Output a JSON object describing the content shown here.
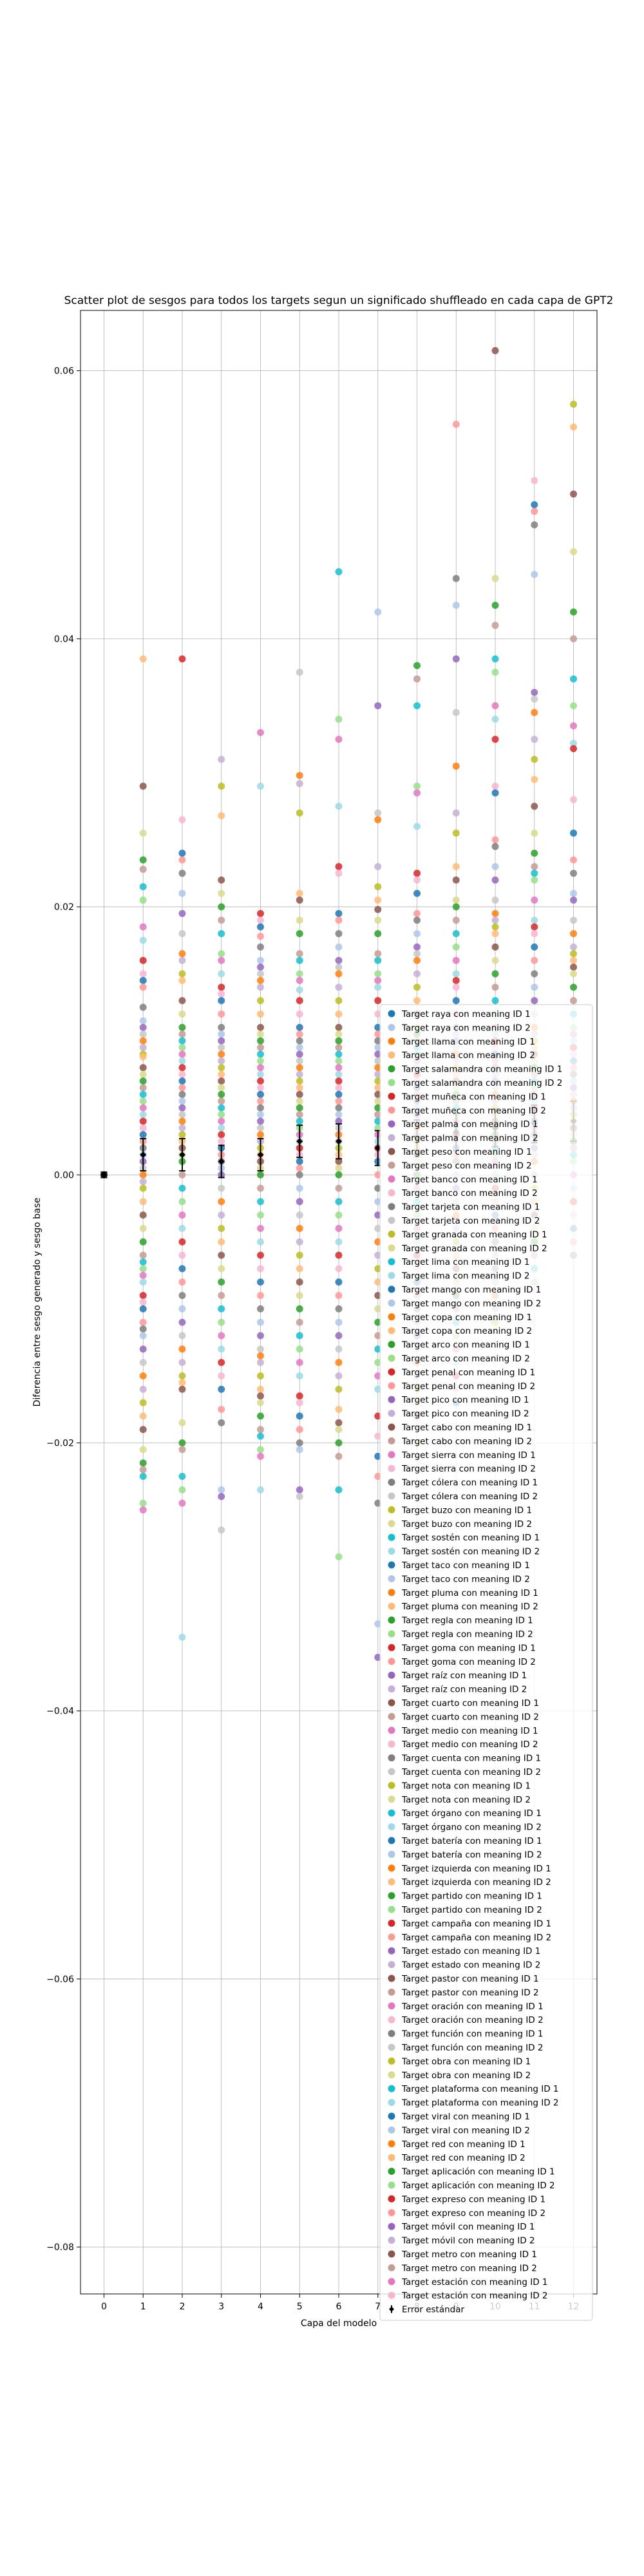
{
  "chart_data": {
    "type": "scatter",
    "title": "Scatter plot de sesgos para todos los targets segun un significado shuffleado en cada capa de GPT2",
    "xlabel": "Capa del modelo",
    "ylabel": "Diferencia entre sesgo generado y sesgo base",
    "xlim": [
      -0.6,
      12.6
    ],
    "ylim": [
      -0.0835,
      0.0645
    ],
    "x_ticks": [
      0,
      1,
      2,
      3,
      4,
      5,
      6,
      7,
      8,
      9,
      10,
      11,
      12
    ],
    "y_ticks": [
      -0.08,
      -0.06,
      -0.04,
      -0.02,
      0.0,
      0.02,
      0.04,
      0.06
    ],
    "y_tick_labels": [
      "−0.08",
      "−0.06",
      "−0.04",
      "−0.02",
      "0.00",
      "0.02",
      "0.04",
      "0.06"
    ],
    "grid": true,
    "legend_position": "lower-right",
    "series_names": [
      "Target raya con meaning ID 1",
      "Target raya con meaning ID 2",
      "Target llama con meaning ID 1",
      "Target llama con meaning ID 2",
      "Target salamandra con meaning ID 1",
      "Target salamandra con meaning ID 2",
      "Target muñeca con meaning ID 1",
      "Target muñeca con meaning ID 2",
      "Target palma con meaning ID 1",
      "Target palma con meaning ID 2",
      "Target peso con meaning ID 1",
      "Target peso con meaning ID 2",
      "Target banco con meaning ID 1",
      "Target banco con meaning ID 2",
      "Target tarjeta con meaning ID 1",
      "Target tarjeta con meaning ID 2",
      "Target granada con meaning ID 1",
      "Target granada con meaning ID 2",
      "Target lima con meaning ID 1",
      "Target lima con meaning ID 2",
      "Target mango con meaning ID 1",
      "Target mango con meaning ID 2",
      "Target copa con meaning ID 1",
      "Target copa con meaning ID 2",
      "Target arco con meaning ID 1",
      "Target arco con meaning ID 2",
      "Target penal con meaning ID 1",
      "Target penal con meaning ID 2",
      "Target pico con meaning ID 1",
      "Target pico con meaning ID 2",
      "Target cabo con meaning ID 1",
      "Target cabo con meaning ID 2",
      "Target sierra con meaning ID 1",
      "Target sierra con meaning ID 2",
      "Target cólera con meaning ID 1",
      "Target cólera con meaning ID 2",
      "Target buzo con meaning ID 1",
      "Target buzo con meaning ID 2",
      "Target sostén con meaning ID 1",
      "Target sostén con meaning ID 2",
      "Target taco con meaning ID 1",
      "Target taco con meaning ID 2",
      "Target pluma con meaning ID 1",
      "Target pluma con meaning ID 2",
      "Target regla con meaning ID 1",
      "Target regla con meaning ID 2",
      "Target goma con meaning ID 1",
      "Target goma con meaning ID 2",
      "Target raíz con meaning ID 1",
      "Target raíz con meaning ID 2",
      "Target cuarto con meaning ID 1",
      "Target cuarto con meaning ID 2",
      "Target medio con meaning ID 1",
      "Target medio con meaning ID 2",
      "Target cuenta con meaning ID 1",
      "Target cuenta con meaning ID 2",
      "Target nota con meaning ID 1",
      "Target nota con meaning ID 2",
      "Target órgano con meaning ID 1",
      "Target órgano con meaning ID 2",
      "Target batería con meaning ID 1",
      "Target batería con meaning ID 2",
      "Target izquierda con meaning ID 1",
      "Target izquierda con meaning ID 2",
      "Target partido con meaning ID 1",
      "Target partido con meaning ID 2",
      "Target campaña con meaning ID 1",
      "Target campaña con meaning ID 2",
      "Target estado con meaning ID 1",
      "Target estado con meaning ID 2",
      "Target pastor con meaning ID 1",
      "Target pastor con meaning ID 2",
      "Target oración con meaning ID 1",
      "Target oración con meaning ID 2",
      "Target función con meaning ID 1",
      "Target función con meaning ID 2",
      "Target obra con meaning ID 1",
      "Target obra con meaning ID 2",
      "Target plataforma con meaning ID 1",
      "Target plataforma con meaning ID 2",
      "Target viral con meaning ID 1",
      "Target viral con meaning ID 2",
      "Target red con meaning ID 1",
      "Target red con meaning ID 2",
      "Target aplicación con meaning ID 1",
      "Target aplicación con meaning ID 2",
      "Target expreso con meaning ID 1",
      "Target expreso con meaning ID 2",
      "Target móvil con meaning ID 1",
      "Target móvil con meaning ID 2",
      "Target metro con meaning ID 1",
      "Target metro con meaning ID 2",
      "Target estación con meaning ID 1",
      "Target estación con meaning ID 2"
    ],
    "palette": [
      "#1f77b4",
      "#aec7e8",
      "#ff7f0e",
      "#ffbb78",
      "#2ca02c",
      "#98df8a",
      "#d62728",
      "#ff9896",
      "#9467bd",
      "#c5b0d5",
      "#8c564b",
      "#c49c94",
      "#e377c2",
      "#f7b6d2",
      "#7f7f7f",
      "#c7c7c7",
      "#bcbd22",
      "#dbdb8d",
      "#17becf",
      "#9edae5"
    ],
    "points_by_layer": [
      [
        0.0
      ],
      [
        0.0385,
        0.029,
        0.0255,
        0.0235,
        0.0228,
        0.0215,
        0.0205,
        0.0185,
        0.0175,
        0.016,
        0.015,
        0.0145,
        0.014,
        0.0125,
        0.0115,
        0.011,
        0.0105,
        0.01,
        0.0095,
        0.009,
        0.0088,
        0.008,
        0.0075,
        0.007,
        0.0065,
        0.006,
        0.0055,
        0.005,
        0.0045,
        0.004,
        0.0035,
        0.003,
        0.0025,
        0.002,
        0.0015,
        0.001,
        0.0005,
        0.0,
        -0.0005,
        -0.001,
        -0.002,
        -0.003,
        -0.004,
        -0.005,
        -0.006,
        -0.0065,
        -0.007,
        -0.0075,
        -0.008,
        -0.009,
        -0.0095,
        -0.01,
        -0.011,
        -0.0115,
        -0.012,
        -0.013,
        -0.014,
        -0.015,
        -0.016,
        -0.017,
        -0.018,
        -0.019,
        -0.0205,
        -0.0215,
        -0.022,
        -0.0225,
        -0.0245,
        -0.025
      ],
      [
        0.0385,
        0.0265,
        0.024,
        0.0235,
        0.0225,
        0.021,
        0.0195,
        0.018,
        0.0165,
        0.016,
        0.015,
        0.0145,
        0.013,
        0.012,
        0.011,
        0.0105,
        0.01,
        0.0095,
        0.009,
        0.0085,
        0.008,
        0.0075,
        0.007,
        0.0065,
        0.006,
        0.0055,
        0.005,
        0.0045,
        0.004,
        0.0035,
        0.003,
        0.0025,
        0.002,
        0.0015,
        0.001,
        0.0,
        -0.001,
        -0.002,
        -0.003,
        -0.004,
        -0.005,
        -0.006,
        -0.007,
        -0.008,
        -0.009,
        -0.01,
        -0.011,
        -0.012,
        -0.013,
        -0.014,
        -0.015,
        -0.0155,
        -0.016,
        -0.0185,
        -0.02,
        -0.0205,
        -0.0225,
        -0.0235,
        -0.0245,
        -0.0345
      ],
      [
        0.031,
        0.029,
        0.0268,
        0.022,
        0.021,
        0.02,
        0.019,
        0.018,
        0.0165,
        0.016,
        0.015,
        0.014,
        0.0135,
        0.013,
        0.012,
        0.011,
        0.0105,
        0.01,
        0.0095,
        0.009,
        0.0085,
        0.008,
        0.0075,
        0.007,
        0.0065,
        0.006,
        0.0055,
        0.005,
        0.0045,
        0.004,
        0.0035,
        0.003,
        0.0025,
        0.002,
        0.0015,
        0.001,
        0.0005,
        0.0,
        -0.001,
        -0.002,
        -0.003,
        -0.004,
        -0.005,
        -0.006,
        -0.007,
        -0.008,
        -0.009,
        -0.01,
        -0.011,
        -0.012,
        -0.013,
        -0.014,
        -0.015,
        -0.016,
        -0.0175,
        -0.0185,
        -0.0235,
        -0.024,
        -0.0265
      ],
      [
        0.033,
        0.029,
        0.0195,
        0.019,
        0.0185,
        0.0178,
        0.017,
        0.016,
        0.0155,
        0.015,
        0.0145,
        0.014,
        0.013,
        0.012,
        0.011,
        0.0105,
        0.01,
        0.0095,
        0.009,
        0.0085,
        0.008,
        0.0075,
        0.007,
        0.0065,
        0.006,
        0.0055,
        0.005,
        0.0045,
        0.004,
        0.0035,
        0.003,
        0.0025,
        0.002,
        0.0015,
        0.001,
        0.0005,
        0.0,
        -0.001,
        -0.002,
        -0.003,
        -0.004,
        -0.005,
        -0.006,
        -0.007,
        -0.008,
        -0.009,
        -0.01,
        -0.011,
        -0.012,
        -0.013,
        -0.0135,
        -0.014,
        -0.015,
        -0.016,
        -0.0165,
        -0.017,
        -0.018,
        -0.019,
        -0.0195,
        -0.0205,
        -0.021,
        -0.0235
      ],
      [
        0.0375,
        0.0298,
        0.0292,
        0.027,
        0.021,
        0.0205,
        0.019,
        0.018,
        0.0165,
        0.016,
        0.015,
        0.0145,
        0.0138,
        0.013,
        0.012,
        0.011,
        0.0105,
        0.01,
        0.0095,
        0.009,
        0.0085,
        0.008,
        0.0075,
        0.007,
        0.0065,
        0.006,
        0.0055,
        0.005,
        0.0045,
        0.004,
        0.0035,
        0.003,
        0.0025,
        0.002,
        0.0015,
        0.001,
        0.0005,
        0.0,
        -0.001,
        -0.002,
        -0.003,
        -0.004,
        -0.005,
        -0.006,
        -0.007,
        -0.008,
        -0.009,
        -0.01,
        -0.011,
        -0.012,
        -0.013,
        -0.014,
        -0.015,
        -0.0165,
        -0.017,
        -0.018,
        -0.019,
        -0.02,
        -0.0205,
        -0.0235,
        -0.024
      ],
      [
        0.045,
        0.034,
        0.0325,
        0.0275,
        0.023,
        0.0225,
        0.0195,
        0.019,
        0.018,
        0.017,
        0.016,
        0.0155,
        0.015,
        0.014,
        0.013,
        0.012,
        0.011,
        0.0105,
        0.01,
        0.0095,
        0.009,
        0.0085,
        0.008,
        0.0075,
        0.007,
        0.0065,
        0.006,
        0.0055,
        0.005,
        0.0045,
        0.004,
        0.0035,
        0.003,
        0.0025,
        0.002,
        0.0015,
        0.001,
        0.0005,
        0.0,
        -0.001,
        -0.002,
        -0.003,
        -0.004,
        -0.005,
        -0.006,
        -0.007,
        -0.008,
        -0.009,
        -0.01,
        -0.011,
        -0.012,
        -0.013,
        -0.014,
        -0.015,
        -0.016,
        -0.0175,
        -0.0185,
        -0.019,
        -0.02,
        -0.021,
        -0.0235,
        -0.0285
      ],
      [
        0.042,
        0.035,
        0.027,
        0.0265,
        0.023,
        0.0215,
        0.0205,
        0.0198,
        0.019,
        0.018,
        0.0165,
        0.016,
        0.015,
        0.0145,
        0.014,
        0.013,
        0.012,
        0.011,
        0.0105,
        0.01,
        0.0095,
        0.009,
        0.0085,
        0.008,
        0.0075,
        0.007,
        0.0065,
        0.006,
        0.0055,
        0.005,
        0.0045,
        0.004,
        0.0035,
        0.003,
        0.0025,
        0.002,
        0.0015,
        0.001,
        0.0,
        -0.001,
        -0.002,
        -0.003,
        -0.004,
        -0.005,
        -0.006,
        -0.007,
        -0.008,
        -0.009,
        -0.01,
        -0.011,
        -0.012,
        -0.013,
        -0.014,
        -0.015,
        -0.016,
        -0.018,
        -0.0195,
        -0.021,
        -0.0225,
        -0.0245,
        -0.0335,
        -0.036
      ],
      [
        0.038,
        0.037,
        0.035,
        0.029,
        0.0285,
        0.026,
        0.0225,
        0.022,
        0.021,
        0.0195,
        0.019,
        0.018,
        0.017,
        0.0165,
        0.016,
        0.015,
        0.014,
        0.013,
        0.012,
        0.011,
        0.0105,
        0.01,
        0.0095,
        0.009,
        0.0085,
        0.008,
        0.0075,
        0.007,
        0.0065,
        0.006,
        0.0055,
        0.005,
        0.0045,
        0.004,
        0.0035,
        0.003,
        0.0025,
        0.002,
        0.0015,
        0.001,
        0.0,
        -0.001,
        -0.002,
        -0.003,
        -0.004,
        -0.005,
        -0.006,
        -0.007,
        -0.008,
        -0.009,
        -0.01,
        -0.011,
        -0.012,
        -0.013,
        -0.014,
        -0.015,
        -0.016,
        -0.017,
        -0.018,
        -0.02
      ],
      [
        0.056,
        0.0445,
        0.0425,
        0.0385,
        0.0345,
        0.0305,
        0.027,
        0.0255,
        0.023,
        0.022,
        0.0205,
        0.02,
        0.019,
        0.018,
        0.017,
        0.016,
        0.015,
        0.0145,
        0.014,
        0.013,
        0.012,
        0.011,
        0.0105,
        0.01,
        0.0095,
        0.009,
        0.0085,
        0.008,
        0.0075,
        0.007,
        0.0065,
        0.006,
        0.0055,
        0.005,
        0.0045,
        0.004,
        0.0035,
        0.003,
        0.0025,
        0.002,
        0.0015,
        0.001,
        0.0,
        -0.001,
        -0.002,
        -0.003,
        -0.004,
        -0.005,
        -0.006,
        -0.007,
        -0.008,
        -0.009,
        -0.01,
        -0.011,
        -0.012,
        -0.013,
        -0.014,
        -0.015,
        -0.016,
        -0.017
      ],
      [
        0.0615,
        0.0445,
        0.0425,
        0.041,
        0.0385,
        0.0375,
        0.035,
        0.034,
        0.0325,
        0.029,
        0.0285,
        0.025,
        0.0245,
        0.023,
        0.022,
        0.0205,
        0.0195,
        0.019,
        0.0185,
        0.018,
        0.017,
        0.016,
        0.015,
        0.014,
        0.013,
        0.012,
        0.011,
        0.0105,
        0.01,
        0.0095,
        0.009,
        0.0085,
        0.008,
        0.0075,
        0.007,
        0.0065,
        0.006,
        0.0055,
        0.005,
        0.0045,
        0.004,
        0.0035,
        0.003,
        0.0025,
        0.002,
        0.0015,
        0.001,
        0.0,
        -0.001,
        -0.002,
        -0.003,
        -0.004,
        -0.005,
        -0.006,
        -0.007,
        -0.008,
        -0.009,
        -0.01,
        -0.011
      ],
      [
        0.0518,
        0.05,
        0.0495,
        0.0485,
        0.0448,
        0.036,
        0.0355,
        0.0345,
        0.0325,
        0.031,
        0.0295,
        0.0275,
        0.0255,
        0.024,
        0.023,
        0.0225,
        0.022,
        0.0205,
        0.019,
        0.0185,
        0.018,
        0.017,
        0.016,
        0.015,
        0.014,
        0.013,
        0.012,
        0.011,
        0.0105,
        0.01,
        0.0095,
        0.009,
        0.0085,
        0.008,
        0.0075,
        0.007,
        0.0065,
        0.006,
        0.0055,
        0.005,
        0.0045,
        0.004,
        0.0035,
        0.003,
        0.0025,
        0.002,
        0.0015,
        0.001,
        0.0,
        -0.001,
        -0.002,
        -0.003,
        -0.004,
        -0.005,
        -0.006,
        -0.007,
        -0.008
      ],
      [
        0.0575,
        0.0558,
        0.0508,
        0.0465,
        0.042,
        0.04,
        0.037,
        0.035,
        0.0335,
        0.0322,
        0.0318,
        0.028,
        0.0255,
        0.0235,
        0.0225,
        0.021,
        0.0205,
        0.019,
        0.018,
        0.017,
        0.0165,
        0.016,
        0.0155,
        0.015,
        0.014,
        0.013,
        0.012,
        0.011,
        0.0105,
        0.01,
        0.0095,
        0.009,
        0.0085,
        0.008,
        0.0075,
        0.007,
        0.0065,
        0.006,
        0.0055,
        0.005,
        0.0045,
        0.004,
        0.0035,
        0.003,
        0.0025,
        0.002,
        0.0015,
        0.001,
        0.0,
        -0.001,
        -0.002,
        -0.003,
        -0.004,
        -0.005,
        -0.006
      ]
    ],
    "means": [
      0.0,
      0.0015,
      0.0015,
      0.001,
      0.0015,
      0.0025,
      0.0025,
      0.002,
      0.0028,
      0.0032,
      0.0035,
      0.0038,
      0.004
    ],
    "std_errors": [
      0.0002,
      0.0012,
      0.0012,
      0.0012,
      0.0012,
      0.0012,
      0.0013,
      0.0013,
      0.0013,
      0.0014,
      0.0014,
      0.0014,
      0.0015
    ],
    "error_bar_label": "Error estándar"
  }
}
